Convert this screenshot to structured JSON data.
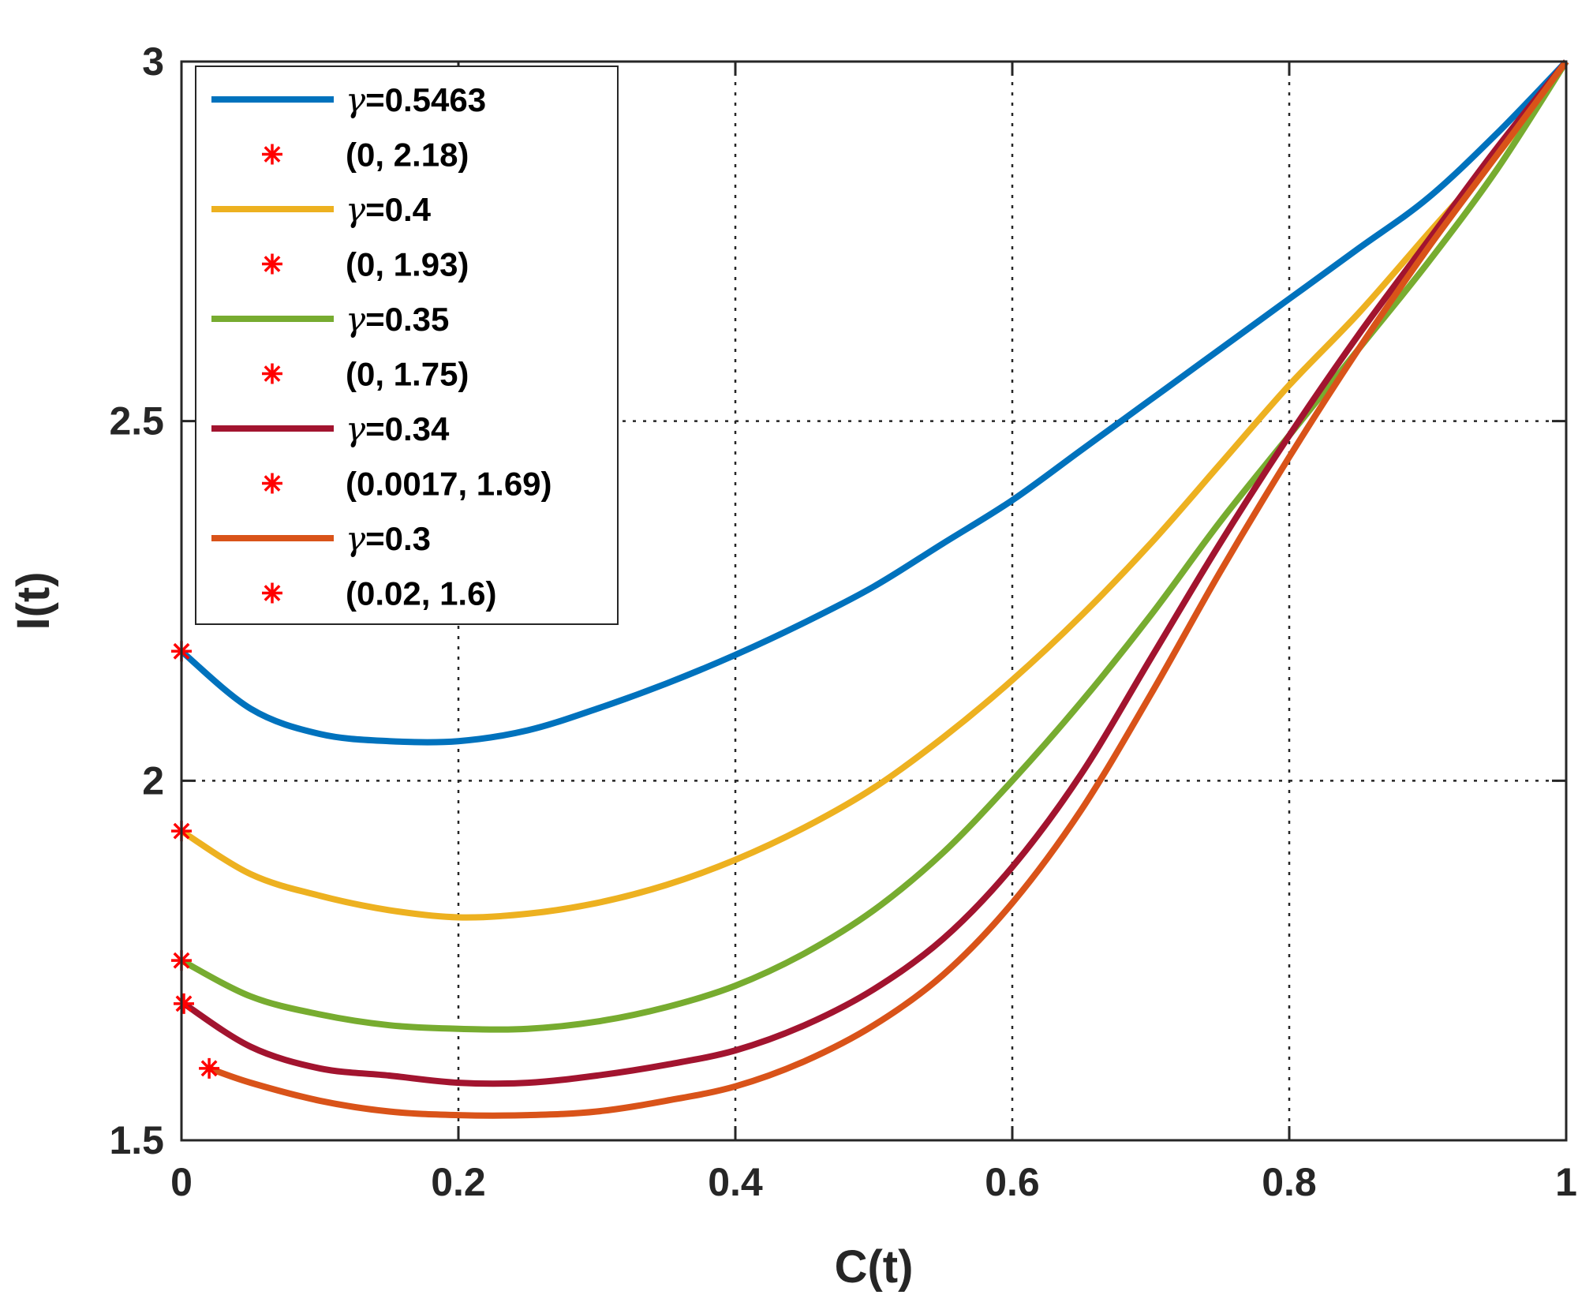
{
  "chart_data": {
    "type": "line",
    "xlabel": "C(t)",
    "ylabel": "I(t)",
    "xlim": [
      0,
      1
    ],
    "ylim": [
      1.5,
      3
    ],
    "xticks": [
      0,
      0.2,
      0.4,
      0.6,
      0.8,
      1
    ],
    "xtick_labels": [
      "0",
      "0.2",
      "0.4",
      "0.6",
      "0.8",
      "1"
    ],
    "yticks": [
      1.5,
      2,
      2.5,
      3
    ],
    "ytick_labels": [
      "1.5",
      "2",
      "2.5",
      "3"
    ],
    "grid": true,
    "legend_position": "top-left",
    "series": [
      {
        "name": "γ=0.5463",
        "color": "#0072BD",
        "x": [
          0,
          0.05,
          0.1,
          0.15,
          0.2,
          0.25,
          0.3,
          0.35,
          0.4,
          0.45,
          0.5,
          0.55,
          0.6,
          0.65,
          0.7,
          0.75,
          0.8,
          0.85,
          0.9,
          0.95,
          1
        ],
        "y": [
          2.18,
          2.1,
          2.065,
          2.055,
          2.055,
          2.07,
          2.1,
          2.135,
          2.175,
          2.22,
          2.27,
          2.33,
          2.39,
          2.46,
          2.53,
          2.6,
          2.67,
          2.74,
          2.81,
          2.9,
          3.0
        ],
        "marker": {
          "label": "(0, 2.18)",
          "x": 0,
          "y": 2.18
        }
      },
      {
        "name": "γ=0.4",
        "color": "#EDB120",
        "x": [
          0,
          0.05,
          0.1,
          0.15,
          0.2,
          0.25,
          0.3,
          0.35,
          0.4,
          0.45,
          0.5,
          0.55,
          0.6,
          0.65,
          0.7,
          0.75,
          0.8,
          0.85,
          0.9,
          0.95,
          1
        ],
        "y": [
          1.93,
          1.87,
          1.84,
          1.82,
          1.81,
          1.815,
          1.83,
          1.855,
          1.89,
          1.935,
          1.99,
          2.06,
          2.14,
          2.23,
          2.33,
          2.44,
          2.55,
          2.65,
          2.76,
          2.87,
          3.0
        ],
        "marker": {
          "label": "(0, 1.93)",
          "x": 0,
          "y": 1.93
        }
      },
      {
        "name": "γ=0.35",
        "color": "#77AC30",
        "x": [
          0,
          0.05,
          0.1,
          0.15,
          0.2,
          0.25,
          0.3,
          0.35,
          0.4,
          0.45,
          0.5,
          0.55,
          0.6,
          0.65,
          0.7,
          0.75,
          0.8,
          0.85,
          0.9,
          0.95,
          1
        ],
        "y": [
          1.75,
          1.7,
          1.675,
          1.66,
          1.655,
          1.655,
          1.665,
          1.685,
          1.715,
          1.76,
          1.82,
          1.9,
          2.0,
          2.11,
          2.23,
          2.36,
          2.48,
          2.6,
          2.72,
          2.85,
          3.0
        ],
        "marker": {
          "label": "(0, 1.75)",
          "x": 0,
          "y": 1.75
        }
      },
      {
        "name": "γ=0.34",
        "color": "#A2142F",
        "x": [
          0.0017,
          0.05,
          0.1,
          0.15,
          0.2,
          0.25,
          0.3,
          0.35,
          0.4,
          0.45,
          0.5,
          0.55,
          0.6,
          0.65,
          0.7,
          0.75,
          0.8,
          0.85,
          0.9,
          0.95,
          1
        ],
        "y": [
          1.69,
          1.63,
          1.6,
          1.59,
          1.58,
          1.58,
          1.59,
          1.605,
          1.625,
          1.66,
          1.71,
          1.78,
          1.88,
          2.01,
          2.17,
          2.33,
          2.48,
          2.62,
          2.75,
          2.88,
          3.0
        ],
        "marker": {
          "label": "(0.0017, 1.69)",
          "x": 0.0017,
          "y": 1.69
        }
      },
      {
        "name": "γ=0.3",
        "color": "#D95319",
        "x": [
          0.02,
          0.05,
          0.1,
          0.15,
          0.2,
          0.25,
          0.3,
          0.35,
          0.4,
          0.45,
          0.5,
          0.55,
          0.6,
          0.65,
          0.7,
          0.75,
          0.8,
          0.85,
          0.9,
          0.95,
          1
        ],
        "y": [
          1.6,
          1.58,
          1.555,
          1.54,
          1.535,
          1.535,
          1.54,
          1.555,
          1.575,
          1.61,
          1.66,
          1.73,
          1.83,
          1.96,
          2.12,
          2.29,
          2.45,
          2.6,
          2.74,
          2.87,
          3.0
        ],
        "marker": {
          "label": "(0.02, 1.6)",
          "x": 0.02,
          "y": 1.6
        }
      }
    ],
    "marker_color": "#FF0000",
    "legend": [
      {
        "type": "line",
        "series": 0,
        "text": "γ=0.5463"
      },
      {
        "type": "marker",
        "text": "(0, 2.18)"
      },
      {
        "type": "line",
        "series": 1,
        "text": "γ=0.4"
      },
      {
        "type": "marker",
        "text": "(0, 1.93)"
      },
      {
        "type": "line",
        "series": 2,
        "text": "γ=0.35"
      },
      {
        "type": "marker",
        "text": "(0, 1.75)"
      },
      {
        "type": "line",
        "series": 3,
        "text": "γ=0.34"
      },
      {
        "type": "marker",
        "text": "(0.0017, 1.69)"
      },
      {
        "type": "line",
        "series": 4,
        "text": "γ=0.3"
      },
      {
        "type": "marker",
        "text": "(0.02, 1.6)"
      }
    ]
  }
}
